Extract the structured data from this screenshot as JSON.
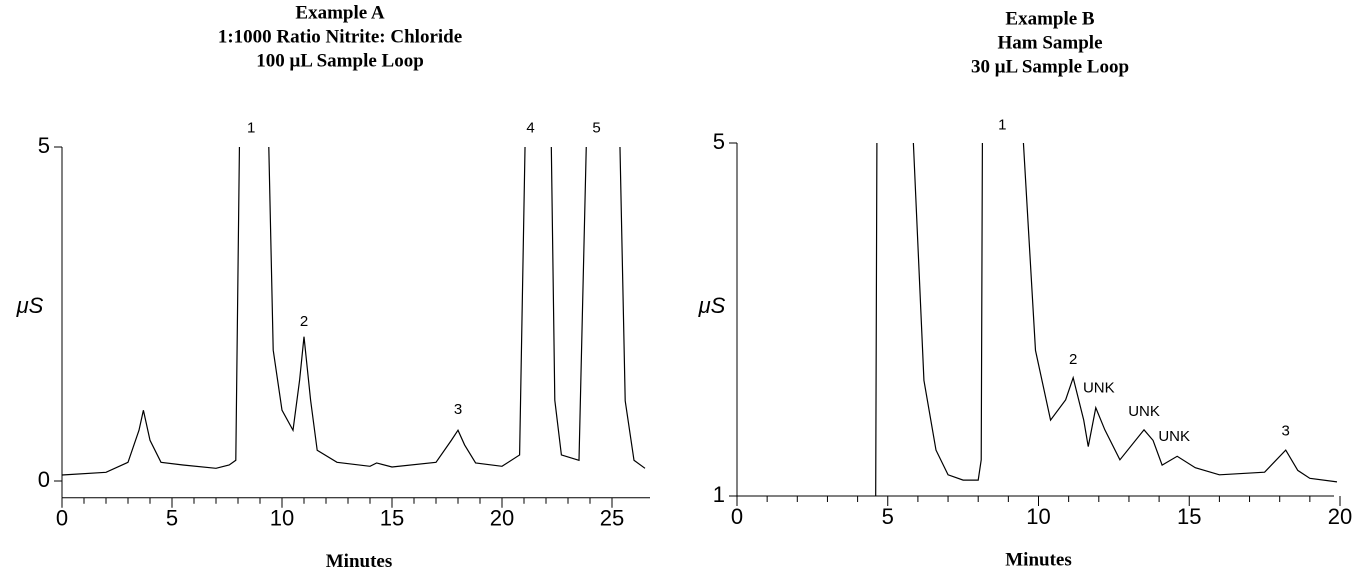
{
  "chart_data": [
    {
      "type": "line",
      "title": "Example A",
      "subtitle": [
        "1:1000 Ratio Nitrite: Chloride",
        "100 μL Sample Loop"
      ],
      "x_label": "Minutes",
      "y_label": "μS",
      "xlim": [
        0,
        27
      ],
      "xticks": [
        0,
        5,
        10,
        15,
        20,
        25
      ],
      "ylim": [
        -0.25,
        5
      ],
      "yticks": [
        0,
        5
      ],
      "series": [
        {
          "color": "#000000",
          "x": [
            0,
            2,
            3,
            3.5,
            3.7,
            4.0,
            4.5,
            5.5,
            7,
            7.6,
            7.9,
            8.1,
            9.2,
            9.4,
            9.6,
            10,
            10.5,
            10.8,
            11.0,
            11.3,
            11.6,
            12.5,
            14,
            14.3,
            15,
            17,
            17.7,
            18.0,
            18.3,
            18.8,
            20,
            20.8,
            21.1,
            22.2,
            22.4,
            22.7,
            23.5,
            23.9,
            25.3,
            25.6,
            26,
            26.5
          ],
          "values": [
            0.09,
            0.13,
            0.28,
            0.76,
            1.06,
            0.61,
            0.28,
            0.24,
            0.19,
            0.24,
            0.31,
            6,
            6,
            5,
            1.96,
            1.06,
            0.76,
            1.51,
            2.16,
            1.21,
            0.46,
            0.28,
            0.22,
            0.27,
            0.21,
            0.28,
            0.61,
            0.76,
            0.54,
            0.27,
            0.22,
            0.39,
            6,
            6,
            1.21,
            0.39,
            0.31,
            6,
            6,
            1.2,
            0.31,
            0.19
          ]
        }
      ],
      "annotations": [
        {
          "text": "1",
          "x": 8.6,
          "y": 5.28
        },
        {
          "text": "2",
          "x": 11.0,
          "y": 2.38
        },
        {
          "text": "3",
          "x": 18.0,
          "y": 1.06
        },
        {
          "text": "4",
          "x": 21.3,
          "y": 5.28
        },
        {
          "text": "5",
          "x": 24.3,
          "y": 5.28
        }
      ]
    },
    {
      "type": "line",
      "title": "Example B",
      "subtitle": [
        "Ham Sample",
        "30 μL Sample Loop"
      ],
      "x_label": "Minutes",
      "y_label": "μS",
      "xlim": [
        0,
        20
      ],
      "xticks": [
        0,
        5,
        10,
        15,
        20
      ],
      "ylim": [
        1,
        5
      ],
      "yticks": [
        1,
        5
      ],
      "series": [
        {
          "color": "#000000",
          "x": [
            4.6,
            4.65,
            5.75,
            5.85,
            6.2,
            6.6,
            7.0,
            7.5,
            8.0,
            8.1,
            8.15,
            9.35,
            9.5,
            9.9,
            10.4,
            10.9,
            11.15,
            11.5,
            11.65,
            11.9,
            12.2,
            12.7,
            13.5,
            13.8,
            14.1,
            14.6,
            15.2,
            16,
            17.5,
            18.2,
            18.6,
            19,
            19.9
          ],
          "values": [
            1.0,
            6,
            6,
            5,
            2.31,
            1.52,
            1.24,
            1.18,
            1.18,
            1.41,
            6,
            6,
            5,
            2.65,
            1.86,
            2.09,
            2.34,
            1.86,
            1.56,
            2.0,
            1.75,
            1.41,
            1.75,
            1.63,
            1.35,
            1.45,
            1.32,
            1.24,
            1.27,
            1.52,
            1.29,
            1.2,
            1.16
          ]
        }
      ],
      "annotations": [
        {
          "text": "1",
          "x": 8.8,
          "y": 5.2
        },
        {
          "text": "2",
          "x": 11.15,
          "y": 2.54
        },
        {
          "text": "UNK",
          "x": 12.0,
          "y": 2.22
        },
        {
          "text": "UNK",
          "x": 13.5,
          "y": 1.95
        },
        {
          "text": "UNK",
          "x": 14.5,
          "y": 1.67
        },
        {
          "text": "3",
          "x": 18.2,
          "y": 1.73
        }
      ]
    }
  ]
}
